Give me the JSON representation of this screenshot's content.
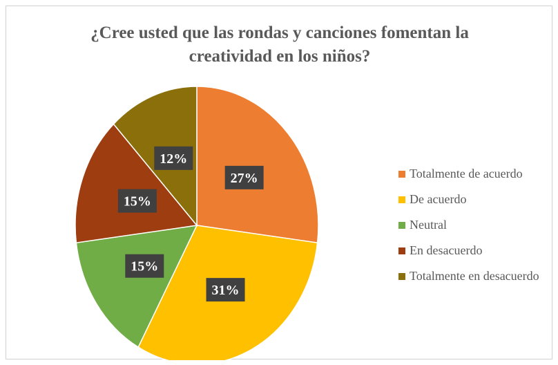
{
  "colors": {
    "totalmente_de_acuerdo": "#ED7D31",
    "de_acuerdo": "#FFC000",
    "neutral": "#70AD47",
    "en_desacuerdo": "#9E3D0F",
    "totalmente_en_desacuerdo": "#8B6F0A",
    "label_box": "#404040",
    "label_text": "#ffffff"
  },
  "chart_data": {
    "type": "pie",
    "title_lines": [
      "¿Cree usted que las rondas y canciones fomentan la",
      "creatividad en los niños?"
    ],
    "categories": [
      "Totalmente de acuerdo",
      "De acuerdo",
      "Neutral",
      "En desacuerdo",
      "Totalmente en desacuerdo"
    ],
    "values": [
      27,
      31,
      15,
      15,
      12
    ],
    "data_labels": [
      "27%",
      "31%",
      "15%",
      "15%",
      "12%"
    ],
    "legend_position": "right"
  }
}
